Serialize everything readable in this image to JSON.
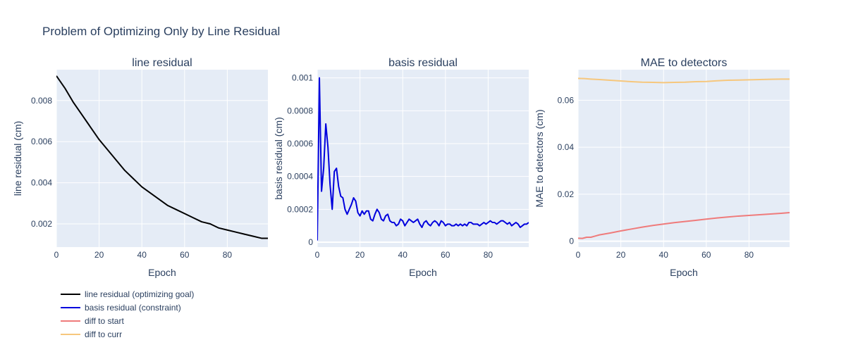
{
  "title": "Problem of Optimizing Only by Line Residual",
  "chart_data": [
    {
      "type": "line",
      "title": "line residual",
      "xlabel": "Epoch",
      "ylabel": "line residual (cm)",
      "xlim": [
        0,
        99
      ],
      "ylim": [
        0.00087,
        0.0095
      ],
      "xticks": [
        0,
        20,
        40,
        60,
        80
      ],
      "xtick_labels": [
        "0",
        "20",
        "40",
        "60",
        "80"
      ],
      "yticks": [
        0.002,
        0.004,
        0.006,
        0.008
      ],
      "ytick_labels": [
        "0.002",
        "0.004",
        "0.006",
        "0.008"
      ],
      "grid": true,
      "series": [
        {
          "name": "line residual (optimizing goal)",
          "color": "#000000",
          "x": [
            0,
            4,
            8,
            12,
            16,
            20,
            24,
            28,
            32,
            36,
            40,
            44,
            48,
            52,
            56,
            60,
            64,
            68,
            72,
            76,
            80,
            84,
            88,
            92,
            96,
            99
          ],
          "y": [
            0.0092,
            0.0086,
            0.0079,
            0.0073,
            0.0067,
            0.0061,
            0.0056,
            0.0051,
            0.0046,
            0.0042,
            0.0038,
            0.0035,
            0.0032,
            0.0029,
            0.0027,
            0.0025,
            0.0023,
            0.0021,
            0.002,
            0.0018,
            0.0017,
            0.0016,
            0.0015,
            0.0014,
            0.0013,
            0.0013
          ]
        }
      ]
    },
    {
      "type": "line",
      "title": "basis residual",
      "xlabel": "Epoch",
      "ylabel": "basis residual (cm)",
      "xlim": [
        0,
        99
      ],
      "ylim": [
        -3e-05,
        0.00105
      ],
      "xticks": [
        0,
        20,
        40,
        60,
        80
      ],
      "xtick_labels": [
        "0",
        "20",
        "40",
        "60",
        "80"
      ],
      "yticks": [
        0,
        0.0002,
        0.0004,
        0.0006,
        0.0008,
        0.001
      ],
      "ytick_labels": [
        "0",
        "0.0002",
        "0.0004",
        "0.0006",
        "0.0008",
        "0.001"
      ],
      "grid": true,
      "series": [
        {
          "name": "basis residual (constraint)",
          "color": "#0000dd",
          "x": [
            0,
            1,
            2,
            3,
            4,
            5,
            6,
            7,
            8,
            9,
            10,
            11,
            12,
            13,
            14,
            15,
            16,
            17,
            18,
            19,
            20,
            21,
            22,
            23,
            24,
            25,
            26,
            27,
            28,
            29,
            30,
            31,
            32,
            33,
            34,
            35,
            36,
            37,
            38,
            39,
            40,
            41,
            42,
            43,
            44,
            45,
            46,
            47,
            48,
            49,
            50,
            51,
            52,
            53,
            54,
            55,
            56,
            57,
            58,
            59,
            60,
            61,
            62,
            63,
            64,
            65,
            66,
            67,
            68,
            69,
            70,
            71,
            72,
            73,
            74,
            75,
            76,
            77,
            78,
            79,
            80,
            81,
            82,
            83,
            84,
            85,
            86,
            87,
            88,
            89,
            90,
            91,
            92,
            93,
            94,
            95,
            96,
            97,
            98,
            99
          ],
          "y": [
            1e-05,
            0.001,
            0.00031,
            0.00045,
            0.00072,
            0.00058,
            0.00035,
            0.0002,
            0.00043,
            0.00045,
            0.00034,
            0.00028,
            0.00027,
            0.0002,
            0.00017,
            0.0002,
            0.00023,
            0.00027,
            0.00025,
            0.00018,
            0.00016,
            0.00019,
            0.00017,
            0.00019,
            0.00019,
            0.00014,
            0.00013,
            0.00017,
            0.0002,
            0.00018,
            0.00014,
            0.00013,
            0.00016,
            0.00017,
            0.00013,
            0.00012,
            0.00012,
            0.0001,
            0.00011,
            0.00014,
            0.00013,
            0.0001,
            0.00012,
            0.00014,
            0.00013,
            0.00012,
            0.00013,
            0.00014,
            0.00011,
            9e-05,
            0.00012,
            0.00013,
            0.00011,
            0.0001,
            0.00012,
            0.00013,
            0.00012,
            0.0001,
            0.00013,
            0.00012,
            0.0001,
            0.00011,
            0.00011,
            0.0001,
            0.0001,
            0.00011,
            0.0001,
            0.00011,
            0.0001,
            0.00011,
            0.0001,
            0.00012,
            0.00012,
            0.00011,
            0.00011,
            0.00011,
            0.0001,
            0.00011,
            0.00012,
            0.00011,
            0.00012,
            0.00013,
            0.00012,
            0.00012,
            0.00011,
            0.00012,
            0.00013,
            0.00013,
            0.00012,
            0.00011,
            0.00012,
            0.0001,
            0.00011,
            0.00012,
            0.00011,
            9e-05,
            0.0001,
            0.00011,
            0.00011,
            0.00012
          ]
        }
      ]
    },
    {
      "type": "line",
      "title": "MAE to detectors",
      "xlabel": "Epoch",
      "ylabel": "MAE to detectors (cm)",
      "xlim": [
        0,
        99
      ],
      "ylim": [
        -0.0025,
        0.073
      ],
      "xticks": [
        0,
        20,
        40,
        60,
        80
      ],
      "xtick_labels": [
        "0",
        "20",
        "40",
        "60",
        "80"
      ],
      "yticks": [
        0,
        0.02,
        0.04,
        0.06
      ],
      "ytick_labels": [
        "0",
        "0.02",
        "0.04",
        "0.06"
      ],
      "grid": true,
      "series": [
        {
          "name": "diff to start",
          "color": "#ef7b7b",
          "x": [
            0,
            2,
            4,
            6,
            8,
            10,
            15,
            20,
            25,
            30,
            35,
            40,
            45,
            50,
            55,
            60,
            65,
            70,
            75,
            80,
            85,
            90,
            95,
            99
          ],
          "y": [
            0.0013,
            0.0012,
            0.0017,
            0.0017,
            0.0022,
            0.0027,
            0.0035,
            0.0044,
            0.0052,
            0.006,
            0.0067,
            0.0073,
            0.0079,
            0.0084,
            0.0089,
            0.0094,
            0.0099,
            0.0103,
            0.0107,
            0.011,
            0.0113,
            0.0116,
            0.0119,
            0.0122
          ]
        },
        {
          "name": "diff to curr",
          "color": "#f6c77d",
          "x": [
            0,
            3,
            6,
            10,
            15,
            20,
            25,
            30,
            35,
            40,
            45,
            50,
            55,
            60,
            65,
            70,
            75,
            80,
            85,
            90,
            95,
            99
          ],
          "y": [
            0.0693,
            0.0692,
            0.069,
            0.0688,
            0.0685,
            0.0682,
            0.0679,
            0.0677,
            0.0676,
            0.0675,
            0.0676,
            0.0677,
            0.0679,
            0.068,
            0.0683,
            0.0685,
            0.0686,
            0.0687,
            0.0688,
            0.0689,
            0.069,
            0.069
          ]
        }
      ]
    }
  ],
  "legend": {
    "placement": "bottom-left",
    "items": [
      {
        "label": "line residual (optimizing goal)",
        "color": "#000000"
      },
      {
        "label": "basis residual (constraint)",
        "color": "#0000dd"
      },
      {
        "label": "diff to start",
        "color": "#ef7b7b"
      },
      {
        "label": "diff to curr",
        "color": "#f6c77d"
      }
    ]
  },
  "colors": {
    "plot_background": "#e5ecf6",
    "grid": "#ffffff",
    "text": "#2a3f5f"
  }
}
